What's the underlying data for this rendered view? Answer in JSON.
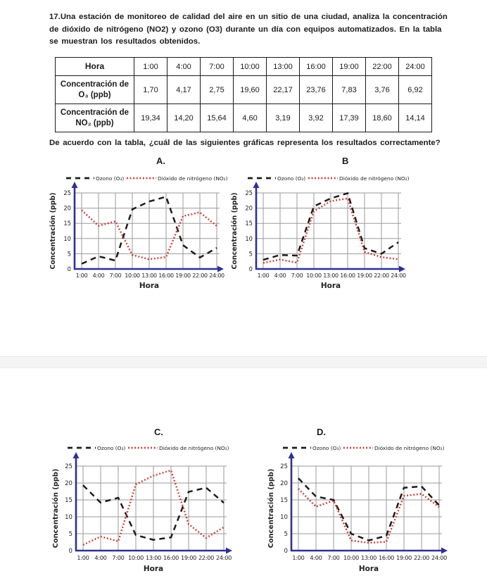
{
  "page": {
    "question_intro": "17.Una estación de monitoreo de calidad del aire en un sitio de una ciudad, analiza la concentración de dióxido de nitrógeno (NO2) y ozono (O3) durante un día con equipos automatizados. En la tabla se muestran los resultados obtenidos.",
    "question_prompt": "De acuerdo con la tabla, ¿cuál de las siguientes gráficas representa los resultados correctamente?"
  },
  "table": {
    "header_label": "Hora",
    "times": [
      "1:00",
      "4:00",
      "7:00",
      "10:00",
      "13:00",
      "16:00",
      "19:00",
      "22:00",
      "24:00"
    ],
    "rows": [
      {
        "label": "Concentración de O₃ (ppb)",
        "values": [
          "1,70",
          "4,17",
          "2,75",
          "19,60",
          "22,17",
          "23,76",
          "7,83",
          "3,76",
          "6,92"
        ]
      },
      {
        "label": "Concentración de NO₂ (ppb)",
        "values": [
          "19,34",
          "14,20",
          "15,64",
          "4,60",
          "3,19",
          "3,92",
          "17,39",
          "18,60",
          "14,14"
        ]
      }
    ]
  },
  "colors": {
    "axis": "#2e3192",
    "grid": "#9a9a9a",
    "ozone_line": "#1c1c1c",
    "no2_line": "#c8372d",
    "tick_text": "#222222",
    "divider": "#f4f4f4"
  },
  "chart_data": [
    {
      "id": "A",
      "option_label": "A.",
      "type": "line",
      "x_categories": [
        "1:00",
        "4:00",
        "7:00",
        "10:00",
        "13:00",
        "16:00",
        "19:00",
        "22:00",
        "24:00"
      ],
      "xlabel": "Hora",
      "ylabel": "Concentración (ppb)",
      "ylim": [
        0,
        25
      ],
      "yticks": [
        0,
        5,
        10,
        15,
        20,
        25
      ],
      "grid": true,
      "legend_position": "top",
      "series": [
        {
          "name": "Ozono (O₃)",
          "style": "dashed",
          "color": "#1c1c1c",
          "values": [
            1.7,
            4.17,
            2.75,
            19.6,
            22.17,
            23.76,
            7.83,
            3.76,
            6.92
          ]
        },
        {
          "name": "Dióxido de nitrógeno (NO₂)",
          "style": "dotted",
          "color": "#c8372d",
          "values": [
            19.34,
            14.2,
            15.64,
            4.6,
            3.19,
            3.92,
            17.39,
            18.6,
            14.14
          ]
        }
      ]
    },
    {
      "id": "B",
      "option_label": "B",
      "type": "line",
      "x_categories": [
        "1:00",
        "4:00",
        "7:00",
        "10:00",
        "13:00",
        "16:00",
        "19:00",
        "22:00",
        "24:00"
      ],
      "xlabel": "Hora",
      "ylabel": "Concentración (ppb)",
      "ylim": [
        0,
        25
      ],
      "yticks": [
        0,
        5,
        10,
        15,
        20,
        25
      ],
      "grid": true,
      "legend_position": "top",
      "series": [
        {
          "name": "Ozono (O₃)",
          "style": "dashed",
          "color": "#1c1c1c",
          "values": [
            3.0,
            4.6,
            4.4,
            20.6,
            23.2,
            24.9,
            6.8,
            5.0,
            8.8
          ]
        },
        {
          "name": "Dióxido de nitrógeno (NO₂)",
          "style": "dotted",
          "color": "#c8372d",
          "values": [
            2.0,
            3.1,
            2.1,
            19.0,
            22.3,
            23.2,
            5.6,
            3.9,
            3.2
          ]
        }
      ]
    },
    {
      "id": "C",
      "option_label": "C.",
      "type": "line",
      "x_categories": [
        "1:00",
        "4:00",
        "7:00",
        "10:00",
        "13:00",
        "16:00",
        "19:00",
        "22:00",
        "24:00"
      ],
      "xlabel": "Hora",
      "ylabel": "Concentración (ppb)",
      "ylim": [
        0,
        25
      ],
      "yticks": [
        0,
        5,
        10,
        15,
        20,
        25
      ],
      "grid": true,
      "legend_position": "top",
      "series": [
        {
          "name": "Ozono (O₃)",
          "style": "dashed",
          "color": "#1c1c1c",
          "values": [
            19.34,
            14.2,
            15.64,
            4.6,
            3.19,
            3.92,
            17.39,
            18.6,
            14.14
          ]
        },
        {
          "name": "Dióxido de nitrógeno (NO₂)",
          "style": "dotted",
          "color": "#c8372d",
          "values": [
            1.7,
            4.17,
            2.75,
            19.6,
            22.17,
            23.76,
            7.83,
            3.76,
            6.92
          ]
        }
      ]
    },
    {
      "id": "D",
      "option_label": "D.",
      "type": "line",
      "x_categories": [
        "1:00",
        "4:00",
        "7:00",
        "10:00",
        "13:00",
        "16:00",
        "19:00",
        "22:00",
        "24:00"
      ],
      "xlabel": "Hora",
      "ylabel": "Concentración (ppb)",
      "ylim": [
        0,
        25
      ],
      "yticks": [
        0,
        5,
        10,
        15,
        20,
        25
      ],
      "grid": true,
      "legend_position": "top",
      "series": [
        {
          "name": "Ozono (O₃)",
          "style": "dashed",
          "color": "#1c1c1c",
          "values": [
            21.4,
            16.0,
            15.0,
            5.0,
            3.0,
            4.4,
            18.6,
            19.0,
            13.4
          ]
        },
        {
          "name": "Dióxido de nitrógeno (NO₂)",
          "style": "dotted",
          "color": "#c8372d",
          "values": [
            18.3,
            13.0,
            14.8,
            3.0,
            2.3,
            2.6,
            16.2,
            16.8,
            12.9
          ]
        }
      ]
    }
  ]
}
